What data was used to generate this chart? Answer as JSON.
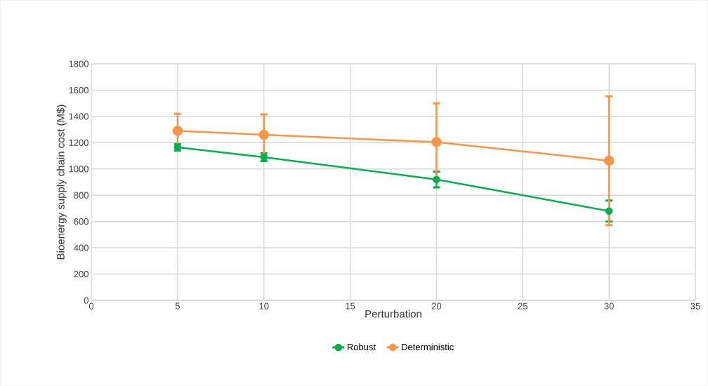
{
  "chart_data": {
    "type": "line",
    "xlabel": "Perturbation",
    "ylabel": "Bioenergy supply chain cost (M$)",
    "x": [
      5,
      10,
      20,
      30
    ],
    "xlim": [
      0,
      35
    ],
    "xticks": [
      0,
      5,
      10,
      15,
      20,
      25,
      30,
      35
    ],
    "ylim": [
      0,
      1800
    ],
    "yticks": [
      0,
      200,
      400,
      600,
      800,
      1000,
      1200,
      1400,
      1600,
      1800
    ],
    "grid": true,
    "legend": "bottom",
    "marker": "circle",
    "line_style": "solid",
    "series": [
      {
        "name": "Robust",
        "color": "#00b050",
        "values": [
          1165,
          1090,
          920,
          680
        ],
        "errors": [
          25,
          30,
          60,
          80
        ]
      },
      {
        "name": "Deterministic",
        "color": "#f79646",
        "values": [
          1290,
          1260,
          1205,
          1063
        ],
        "errors": [
          130,
          155,
          295,
          490
        ]
      }
    ]
  }
}
